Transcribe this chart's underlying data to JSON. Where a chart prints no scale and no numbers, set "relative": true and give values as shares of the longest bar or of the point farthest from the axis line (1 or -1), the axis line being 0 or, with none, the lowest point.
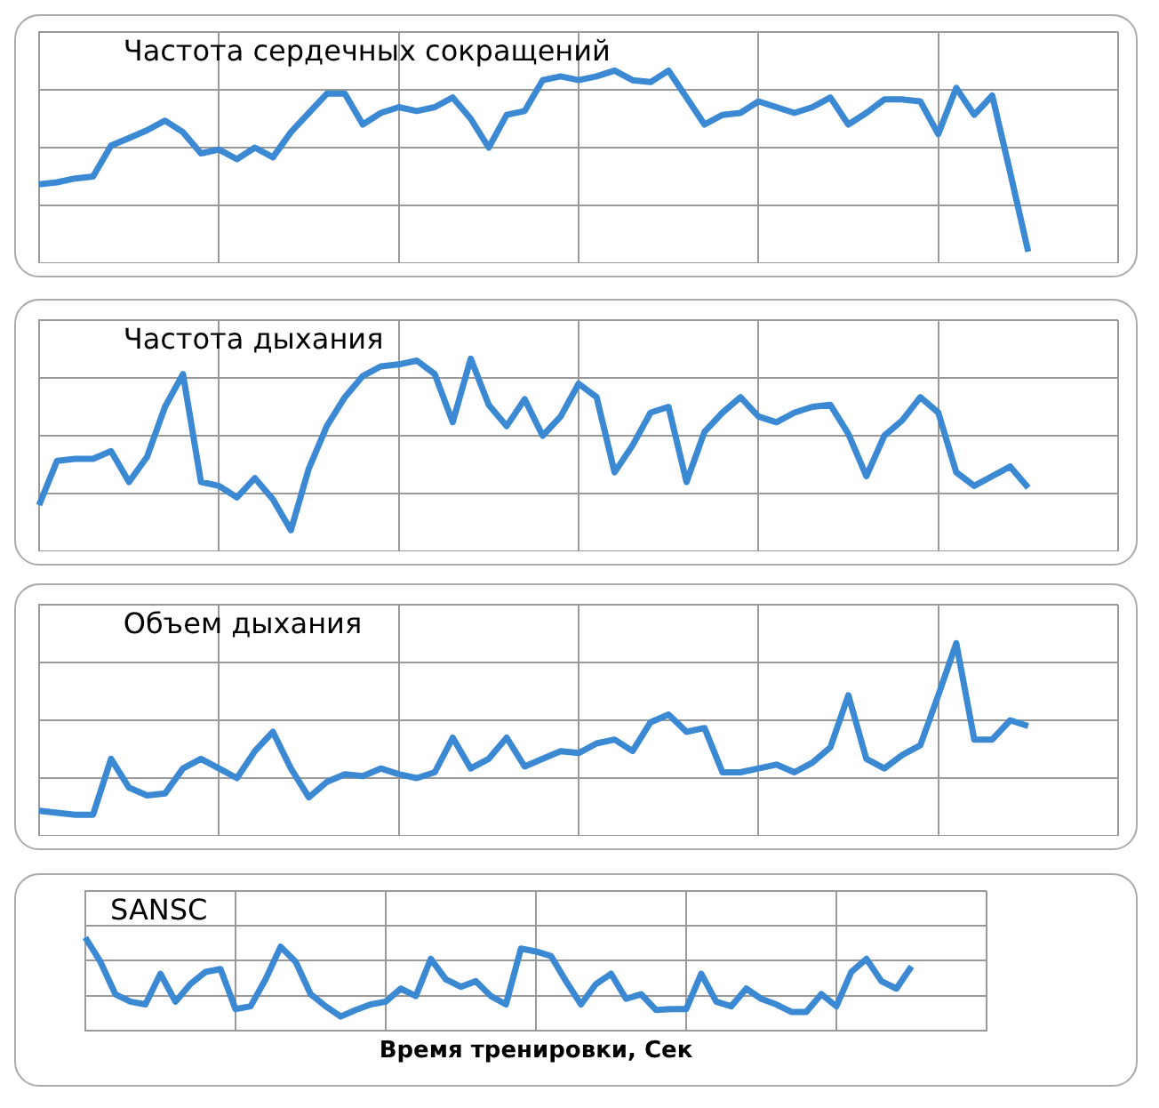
{
  "chart_data": [
    {
      "type": "line",
      "title": "Частота сердечных сокращений",
      "relative": true,
      "grid": true,
      "color": "#3b88d3",
      "categories": [
        null,
        null,
        null,
        null,
        null,
        null,
        null,
        null,
        null,
        null,
        null,
        null,
        null,
        null,
        null,
        null,
        null,
        null,
        null,
        null,
        null,
        null,
        null,
        null,
        null,
        null,
        null,
        null,
        null,
        null,
        null,
        null,
        null,
        null,
        null,
        null,
        null,
        null,
        null,
        null,
        null,
        null,
        null,
        null,
        null,
        null,
        null,
        null,
        null,
        null,
        null,
        null,
        null,
        null,
        null,
        null,
        null,
        null,
        null,
        null,
        null
      ],
      "values": [
        0.41,
        0.42,
        0.44,
        0.45,
        0.61,
        0.65,
        0.69,
        0.74,
        0.68,
        0.57,
        0.59,
        0.54,
        0.6,
        0.55,
        0.68,
        0.78,
        0.88,
        0.88,
        0.72,
        0.78,
        0.81,
        0.79,
        0.81,
        0.86,
        0.75,
        0.6,
        0.77,
        0.79,
        0.95,
        0.97,
        0.95,
        0.97,
        1.0,
        0.95,
        0.94,
        1.0,
        0.86,
        0.72,
        0.77,
        0.78,
        0.84,
        0.81,
        0.78,
        0.81,
        0.86,
        0.72,
        0.78,
        0.85,
        0.85,
        0.84,
        0.67,
        0.91,
        0.77,
        0.87,
        0.47,
        0.06,
        null,
        null,
        null,
        null,
        null
      ]
    },
    {
      "type": "line",
      "title": "Частота дыхания",
      "relative": true,
      "grid": true,
      "color": "#3b88d3",
      "categories": [
        null,
        null,
        null,
        null,
        null,
        null,
        null,
        null,
        null,
        null,
        null,
        null,
        null,
        null,
        null,
        null,
        null,
        null,
        null,
        null,
        null,
        null,
        null,
        null,
        null,
        null,
        null,
        null,
        null,
        null,
        null,
        null,
        null,
        null,
        null,
        null,
        null,
        null,
        null,
        null,
        null,
        null,
        null,
        null,
        null,
        null,
        null,
        null,
        null,
        null,
        null,
        null,
        null,
        null,
        null,
        null,
        null,
        null,
        null,
        null,
        null
      ],
      "values": [
        0.24,
        0.47,
        0.48,
        0.48,
        0.52,
        0.36,
        0.49,
        0.75,
        0.92,
        0.36,
        0.34,
        0.28,
        0.38,
        0.27,
        0.11,
        0.43,
        0.65,
        0.8,
        0.91,
        0.96,
        0.97,
        0.99,
        0.92,
        0.67,
        1.0,
        0.76,
        0.65,
        0.79,
        0.6,
        0.7,
        0.87,
        0.8,
        0.41,
        0.55,
        0.72,
        0.75,
        0.36,
        0.62,
        0.72,
        0.8,
        0.7,
        0.67,
        0.72,
        0.75,
        0.76,
        0.61,
        0.39,
        0.6,
        0.68,
        0.8,
        0.72,
        0.41,
        0.34,
        0.39,
        0.44,
        0.33,
        null,
        null,
        null,
        null,
        null
      ]
    },
    {
      "type": "line",
      "title": "Объем дыхания",
      "relative": true,
      "grid": true,
      "color": "#3b88d3",
      "categories": [
        null,
        null,
        null,
        null,
        null,
        null,
        null,
        null,
        null,
        null,
        null,
        null,
        null,
        null,
        null,
        null,
        null,
        null,
        null,
        null,
        null,
        null,
        null,
        null,
        null,
        null,
        null,
        null,
        null,
        null,
        null,
        null,
        null,
        null,
        null,
        null,
        null,
        null,
        null,
        null,
        null,
        null,
        null,
        null,
        null,
        null,
        null,
        null,
        null,
        null,
        null,
        null,
        null,
        null,
        null,
        null,
        null,
        null,
        null,
        null,
        null
      ],
      "values": [
        0.13,
        0.12,
        0.11,
        0.11,
        0.4,
        0.25,
        0.21,
        0.22,
        0.35,
        0.4,
        0.35,
        0.3,
        0.44,
        0.54,
        0.35,
        0.2,
        0.28,
        0.32,
        0.31,
        0.35,
        0.32,
        0.3,
        0.33,
        0.51,
        0.35,
        0.4,
        0.51,
        0.36,
        0.4,
        0.44,
        0.43,
        0.48,
        0.5,
        0.44,
        0.59,
        0.63,
        0.54,
        0.56,
        0.33,
        0.33,
        0.35,
        0.37,
        0.33,
        0.38,
        0.46,
        0.73,
        0.4,
        0.35,
        0.42,
        0.47,
        0.73,
        1.0,
        0.5,
        0.5,
        0.6,
        0.57,
        null,
        null,
        null,
        null,
        null
      ]
    },
    {
      "type": "line",
      "title": "SANSC",
      "xlabel": "Время тренировки, Сек",
      "relative": true,
      "grid": true,
      "color": "#3b88d3",
      "categories": [
        null,
        null,
        null,
        null,
        null,
        null,
        null,
        null,
        null,
        null,
        null,
        null,
        null,
        null,
        null,
        null,
        null,
        null,
        null,
        null,
        null,
        null,
        null,
        null,
        null,
        null,
        null,
        null,
        null,
        null,
        null,
        null,
        null,
        null,
        null,
        null,
        null,
        null,
        null,
        null,
        null,
        null,
        null,
        null,
        null,
        null,
        null,
        null,
        null,
        null,
        null,
        null,
        null,
        null,
        null,
        null,
        null,
        null,
        null,
        null,
        null
      ],
      "values": [
        1.0,
        0.74,
        0.39,
        0.31,
        0.28,
        0.61,
        0.31,
        0.5,
        0.63,
        0.66,
        0.23,
        0.26,
        0.55,
        0.9,
        0.74,
        0.39,
        0.26,
        0.15,
        0.22,
        0.28,
        0.31,
        0.45,
        0.37,
        0.77,
        0.55,
        0.47,
        0.53,
        0.37,
        0.28,
        0.88,
        0.85,
        0.8,
        0.53,
        0.28,
        0.5,
        0.61,
        0.34,
        0.39,
        0.22,
        0.23,
        0.23,
        0.61,
        0.31,
        0.26,
        0.45,
        0.34,
        0.28,
        0.2,
        0.2,
        0.39,
        0.26,
        0.63,
        0.77,
        0.53,
        0.45,
        0.69,
        null,
        null,
        null,
        null,
        null
      ]
    }
  ]
}
